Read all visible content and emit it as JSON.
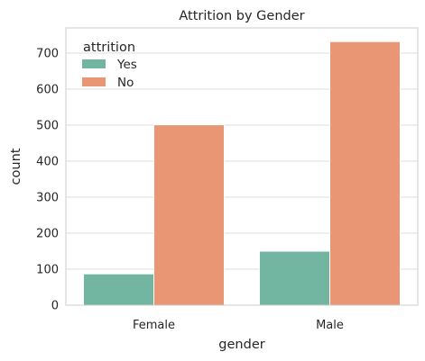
{
  "chart_data": {
    "type": "bar",
    "title": "Attrition by Gender",
    "xlabel": "gender",
    "ylabel": "count",
    "categories": [
      "Female",
      "Male"
    ],
    "series": [
      {
        "name": "Yes",
        "values": [
          87,
          150
        ],
        "color": "#72b6a1"
      },
      {
        "name": "No",
        "values": [
          501,
          732
        ],
        "color": "#e99675"
      }
    ],
    "ylim": [
      0,
      770
    ],
    "yticks": [
      0,
      100,
      200,
      300,
      400,
      500,
      600,
      700
    ],
    "legend": {
      "title": "attrition",
      "placement": "top-left"
    },
    "grid": "horizontal"
  }
}
